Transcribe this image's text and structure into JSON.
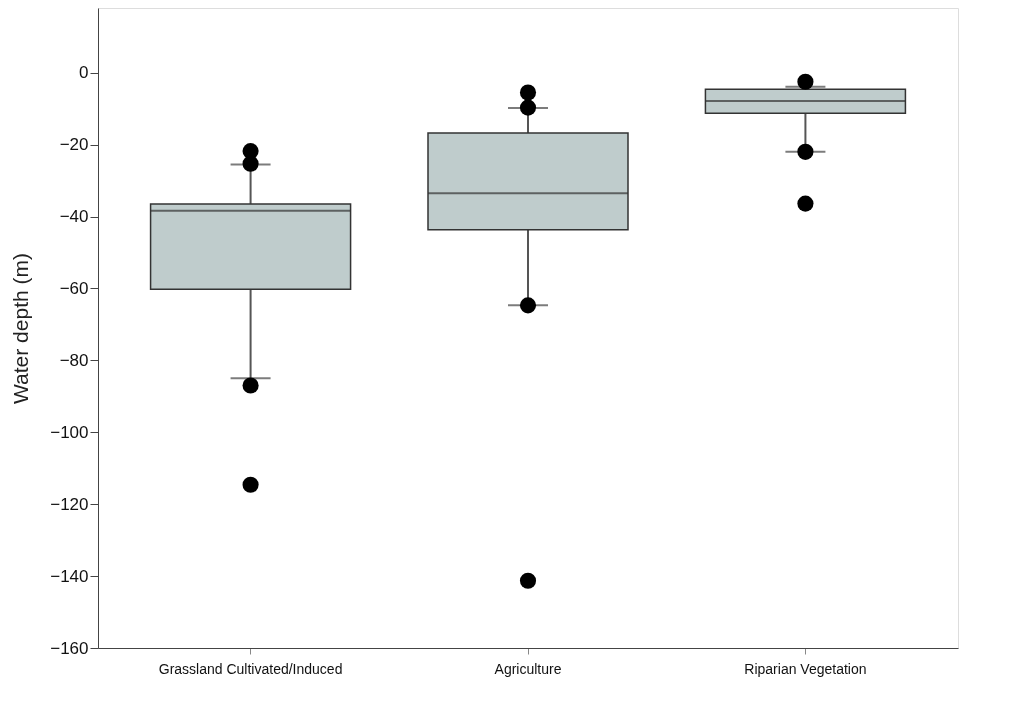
{
  "chart_data": {
    "type": "box",
    "ylabel": "Water depth (m)",
    "categories": [
      "Grassland Cultivated/Induced",
      "Agriculture",
      "Riparian Vegetation"
    ],
    "color": "#bfcccc",
    "boxes": [
      {
        "low": -85,
        "q1": -60.2,
        "median": -38.4,
        "q3": -36.5,
        "high": -25.5,
        "outliers": [
          -21.8,
          -25.3,
          -87,
          -114.6
        ]
      },
      {
        "low": -64.7,
        "q1": -43.7,
        "median": -33.5,
        "q3": -16.8,
        "high": -9.8,
        "outliers": [
          -5.5,
          -9.7,
          -64.7,
          -141.3
        ]
      },
      {
        "low": -22,
        "q1": -11.3,
        "median": -7.9,
        "q3": -4.6,
        "high": -3.9,
        "outliers": [
          -2.5,
          -22,
          -36.4
        ]
      }
    ],
    "ylim": [
      -160,
      18
    ],
    "yticks": [
      -160,
      -140,
      -120,
      -100,
      -80,
      -60,
      -40,
      -20,
      0
    ],
    "grid": false
  }
}
